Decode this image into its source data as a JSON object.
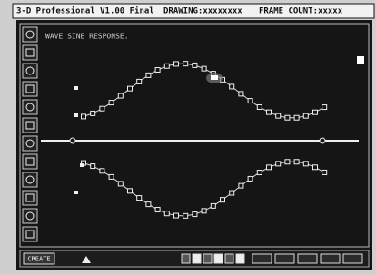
{
  "window": {
    "title": "3-D Professional V1.00 Final",
    "drawing": "DRAWING:xxxxxxxx",
    "frame_count": "FRAME COUNT:xxxxx"
  },
  "canvas": {
    "label": "WAVE SINE RESPONSE."
  },
  "toolbar": {
    "button": "CREATE"
  }
}
